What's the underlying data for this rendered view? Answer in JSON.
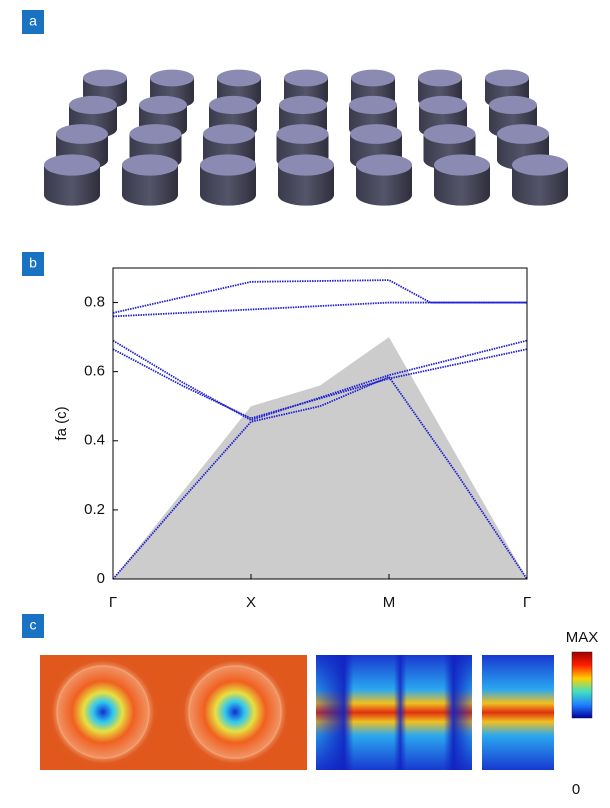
{
  "panel_labels": [
    "a",
    "b",
    "c"
  ],
  "chart_data": {
    "type": "line",
    "y_label": "fa (c)",
    "xlim": [
      0,
      3
    ],
    "xticks": [
      {
        "value": 0,
        "label": "Γ"
      },
      {
        "value": 1,
        "label": "X"
      },
      {
        "value": 2,
        "label": "M"
      },
      {
        "value": 3,
        "label": "Γ"
      }
    ],
    "ylim": [
      0,
      0.9
    ],
    "yticks": [
      0,
      0.2,
      0.4,
      0.6,
      0.8
    ],
    "light_cone": {
      "color": "#cccccc",
      "x": [
        0,
        1,
        1.5,
        2,
        3
      ],
      "values": [
        0,
        0.5,
        0.56,
        0.7,
        0
      ]
    },
    "series": [
      {
        "color": "#2020d0",
        "x": [
          0,
          0.5,
          1,
          1.5,
          2,
          2.5,
          3
        ],
        "values": [
          0,
          0.23,
          0.455,
          0.5,
          0.585,
          0.3,
          0
        ]
      },
      {
        "color": "#2020d0",
        "x": [
          0,
          0.5,
          1,
          2,
          2.5,
          3
        ],
        "values": [
          0.69,
          0.57,
          0.46,
          0.59,
          0.64,
          0.69
        ]
      },
      {
        "color": "#2020d0",
        "x": [
          0,
          0.5,
          1,
          2,
          3
        ],
        "values": [
          0.665,
          0.56,
          0.465,
          0.58,
          0.665
        ]
      },
      {
        "color": "#2020d0",
        "x": [
          0,
          1,
          2,
          3
        ],
        "values": [
          0.76,
          0.78,
          0.8,
          0.8
        ]
      },
      {
        "color": "#2020d0",
        "x": [
          0,
          1,
          2,
          2.3,
          3
        ],
        "values": [
          0.77,
          0.86,
          0.865,
          0.8,
          0.8
        ]
      }
    ]
  },
  "colorbar": {
    "max_label": "MAX",
    "min_label": "0"
  }
}
